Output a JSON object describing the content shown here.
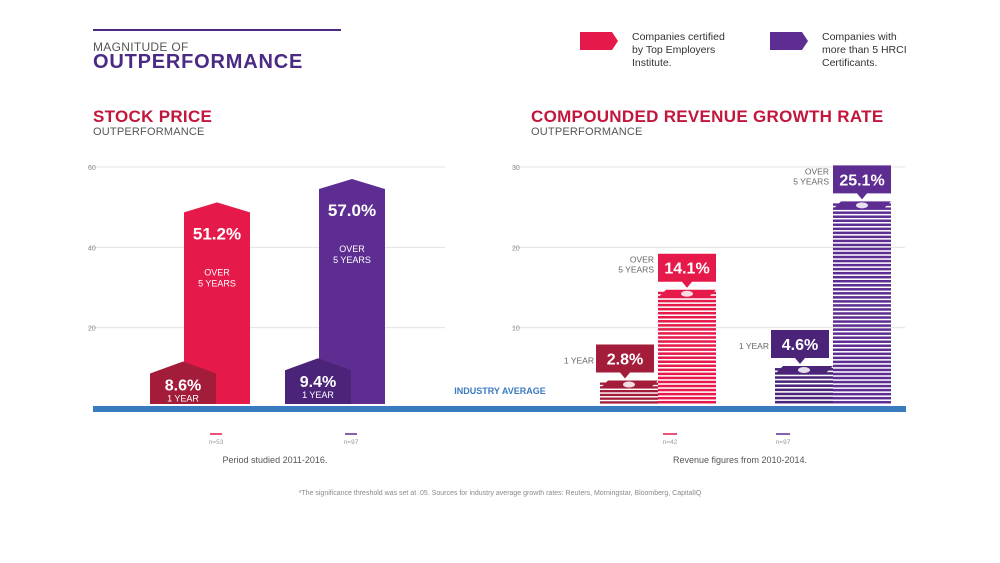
{
  "header": {
    "kicker": "MAGNITUDE OF",
    "title": "OUTPERFORMANCE"
  },
  "legend": [
    {
      "label": "Companies certified\nby Top Employers\nInstitute.",
      "color": "#e5194a"
    },
    {
      "label": "Companies with\nmore than 5 HRCI\nCertificants.",
      "color": "#5d2d91"
    }
  ],
  "colors": {
    "red": "#e5194a",
    "red_dark": "#a31d3a",
    "purple": "#5d2d91",
    "purple_dark": "#4b2479",
    "baseline": "#3a7bc0",
    "grid": "#dddddd"
  },
  "industry_average_label": "INDUSTRY AVERAGE",
  "footnote": "*The significance threshold was set at .05.  Sources for industry average growth rates:  Reuters, Morningstar, Bloomberg, CapitalIQ",
  "chart_data": [
    {
      "type": "bar",
      "title": "STOCK PRICE",
      "subtitle": "OUTPERFORMANCE",
      "ylim": [
        0,
        60
      ],
      "yticks": [
        "20",
        "40",
        "60"
      ],
      "caption": "Period studied 2011-2016.",
      "series": [
        {
          "name": "Companies certified by Top Employers Institute",
          "over_5_years": 51.2,
          "one_year": 8.6,
          "over_label": "51.2%",
          "one_label": "8.6%",
          "n": "n=53"
        },
        {
          "name": "Companies with more than 5 HRCI Certificants",
          "over_5_years": 57.0,
          "one_year": 9.4,
          "over_label": "57.0%",
          "one_label": "9.4%",
          "n": "n=97"
        }
      ],
      "period_labels": {
        "over_line1": "OVER",
        "over_line2": "5 YEARS",
        "one": "1 YEAR"
      }
    },
    {
      "type": "bar",
      "title": "COMPOUNDED REVENUE GROWTH RATE",
      "subtitle": "OUTPERFORMANCE",
      "ylim": [
        0,
        30
      ],
      "yticks": [
        "10",
        "20",
        "30"
      ],
      "caption": "Revenue figures from 2010-2014.",
      "series": [
        {
          "name": "Companies certified by Top Employers Institute",
          "over_5_years": 14.1,
          "one_year": 2.8,
          "over_label": "14.1%",
          "one_label": "2.8%",
          "n": "n=42"
        },
        {
          "name": "Companies with more than 5 HRCI Certificants",
          "over_5_years": 25.1,
          "one_year": 4.6,
          "over_label": "25.1%",
          "one_label": "4.6%",
          "n": "n=97"
        }
      ],
      "period_labels": {
        "over_line1": "OVER",
        "over_line2": "5 YEARS",
        "one": "1 YEAR"
      }
    }
  ]
}
